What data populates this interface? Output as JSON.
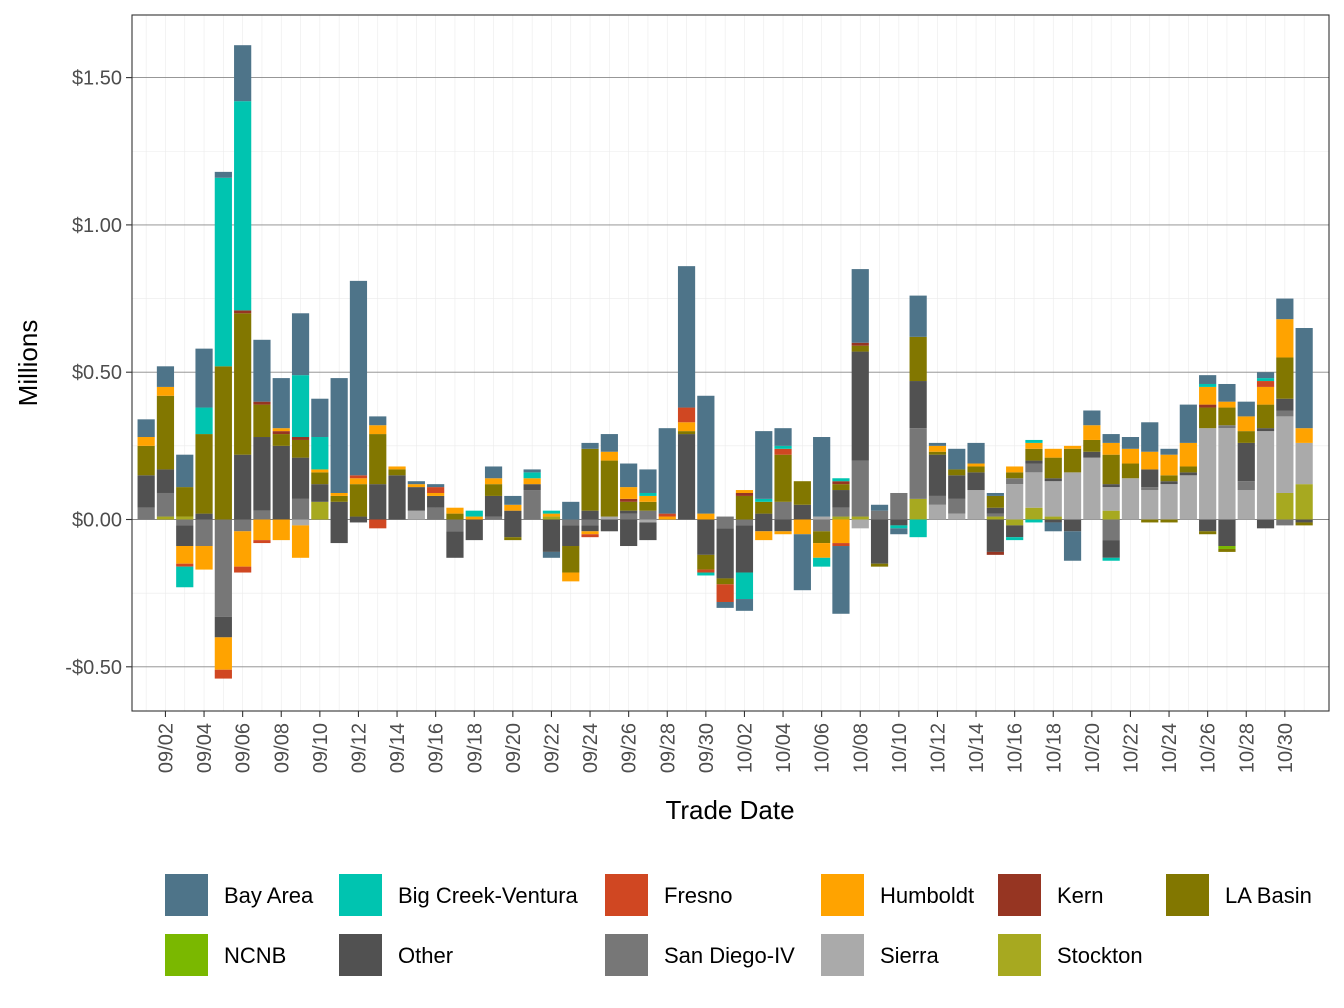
{
  "chart_data": {
    "type": "bar",
    "stacked": true,
    "title": "",
    "xlabel": "Trade Date",
    "ylabel": "Millions",
    "ylim": [
      -0.65,
      1.65
    ],
    "y_ticks": [
      {
        "value": -0.5,
        "label": "-$0.50"
      },
      {
        "value": 0.0,
        "label": "$0.00"
      },
      {
        "value": 0.5,
        "label": "$0.50"
      },
      {
        "value": 1.0,
        "label": "$1.00"
      },
      {
        "value": 1.5,
        "label": "$1.50"
      }
    ],
    "x_tick_labels": [
      "09/02",
      "09/04",
      "09/06",
      "09/08",
      "09/10",
      "09/12",
      "09/14",
      "09/16",
      "09/18",
      "09/20",
      "09/22",
      "09/24",
      "09/26",
      "09/28",
      "09/30",
      "10/02",
      "10/04",
      "10/06",
      "10/08",
      "10/10",
      "10/12",
      "10/14",
      "10/16",
      "10/18",
      "10/20",
      "10/22",
      "10/24",
      "10/26",
      "10/28",
      "10/30"
    ],
    "legend_position": "bottom",
    "series_order": [
      "Bay Area",
      "Big Creek-Ventura",
      "Fresno",
      "Humboldt",
      "Kern",
      "LA Basin",
      "NCNB",
      "Other",
      "San Diego-IV",
      "Sierra",
      "Stockton"
    ],
    "legend": [
      {
        "name": "Bay Area",
        "color": "#4e7489"
      },
      {
        "name": "Big Creek-Ventura",
        "color": "#00c4b0"
      },
      {
        "name": "Fresno",
        "color": "#d04722"
      },
      {
        "name": "Humboldt",
        "color": "#ffa300"
      },
      {
        "name": "Kern",
        "color": "#963522"
      },
      {
        "name": "LA Basin",
        "color": "#827700"
      },
      {
        "name": "NCNB",
        "color": "#7ab800"
      },
      {
        "name": "Other",
        "color": "#515151"
      },
      {
        "name": "San Diego-IV",
        "color": "#777777"
      },
      {
        "name": "Sierra",
        "color": "#aaaaaa"
      },
      {
        "name": "Stockton",
        "color": "#a7a920"
      }
    ],
    "bars": [
      {
        "date": "09/01",
        "pos": {
          "Bay Area": 0.06,
          "Humboldt": 0.03,
          "LA Basin": 0.1,
          "Other": 0.11,
          "San Diego-IV": 0.04
        },
        "neg": {}
      },
      {
        "date": "09/02",
        "pos": {
          "Bay Area": 0.07,
          "Humboldt": 0.03,
          "LA Basin": 0.25,
          "Other": 0.08,
          "San Diego-IV": 0.08,
          "Stockton": 0.01
        },
        "neg": {}
      },
      {
        "date": "09/03",
        "pos": {
          "Bay Area": 0.11,
          "LA Basin": 0.1,
          "Stockton": 0.01
        },
        "neg": {
          "San Diego-IV": 0.02,
          "Other": 0.07,
          "Humboldt": 0.06,
          "Fresno": 0.01,
          "Big Creek-Ventura": 0.07
        }
      },
      {
        "date": "09/04",
        "pos": {
          "Bay Area": 0.2,
          "Big Creek-Ventura": 0.09,
          "LA Basin": 0.27,
          "Other": 0.02
        },
        "neg": {
          "San Diego-IV": 0.09,
          "Humboldt": 0.08
        }
      },
      {
        "date": "09/05",
        "pos": {
          "Bay Area": 0.02,
          "Big Creek-Ventura": 0.64,
          "LA Basin": 0.52
        },
        "neg": {
          "San Diego-IV": 0.33,
          "Other": 0.07,
          "Humboldt": 0.11,
          "Fresno": 0.03
        }
      },
      {
        "date": "09/06",
        "pos": {
          "Bay Area": 0.19,
          "Big Creek-Ventura": 0.71,
          "LA Basin": 0.48,
          "Kern": 0.01,
          "Other": 0.22
        },
        "neg": {
          "San Diego-IV": 0.04,
          "Humboldt": 0.12,
          "Fresno": 0.02
        }
      },
      {
        "date": "09/07",
        "pos": {
          "Bay Area": 0.21,
          "Kern": 0.01,
          "LA Basin": 0.11,
          "Other": 0.25,
          "San Diego-IV": 0.03
        },
        "neg": {
          "Humboldt": 0.07,
          "Fresno": 0.01
        }
      },
      {
        "date": "09/08",
        "pos": {
          "Bay Area": 0.17,
          "Humboldt": 0.01,
          "Kern": 0.01,
          "LA Basin": 0.04,
          "Other": 0.25
        },
        "neg": {
          "Humboldt": 0.07
        }
      },
      {
        "date": "09/09",
        "pos": {
          "Bay Area": 0.21,
          "Big Creek-Ventura": 0.21,
          "Kern": 0.01,
          "LA Basin": 0.06,
          "Other": 0.14,
          "San Diego-IV": 0.07
        },
        "neg": {
          "Sierra": 0.02,
          "Humboldt": 0.11
        }
      },
      {
        "date": "09/10",
        "pos": {
          "Bay Area": 0.13,
          "Big Creek-Ventura": 0.11,
          "Humboldt": 0.01,
          "LA Basin": 0.04,
          "Other": 0.06,
          "Stockton": 0.06
        },
        "neg": {}
      },
      {
        "date": "09/11",
        "pos": {
          "Bay Area": 0.39,
          "Humboldt": 0.01,
          "LA Basin": 0.02,
          "Other": 0.06
        },
        "neg": {
          "Other": 0.08
        }
      },
      {
        "date": "09/12",
        "pos": {
          "Bay Area": 0.66,
          "Humboldt": 0.02,
          "LA Basin": 0.11,
          "Other": 0.01,
          "Fresno": 0.01
        },
        "neg": {
          "Other": 0.01
        }
      },
      {
        "date": "09/13",
        "pos": {
          "Bay Area": 0.03,
          "Humboldt": 0.03,
          "LA Basin": 0.17,
          "Other": 0.12
        },
        "neg": {
          "Fresno": 0.03
        }
      },
      {
        "date": "09/14",
        "pos": {
          "Humboldt": 0.01,
          "LA Basin": 0.02,
          "Other": 0.15
        },
        "neg": {}
      },
      {
        "date": "09/15",
        "pos": {
          "Bay Area": 0.01,
          "Humboldt": 0.01,
          "Other": 0.08,
          "Sierra": 0.03
        },
        "neg": {}
      },
      {
        "date": "09/16",
        "pos": {
          "Bay Area": 0.01,
          "Fresno": 0.02,
          "Humboldt": 0.01,
          "Other": 0.04,
          "San Diego-IV": 0.04
        },
        "neg": {}
      },
      {
        "date": "09/17",
        "pos": {
          "Humboldt": 0.02,
          "LA Basin": 0.02
        },
        "neg": {
          "San Diego-IV": 0.04,
          "Other": 0.09
        }
      },
      {
        "date": "09/18",
        "pos": {
          "Big Creek-Ventura": 0.02,
          "Humboldt": 0.01
        },
        "neg": {
          "Other": 0.07
        }
      },
      {
        "date": "09/19",
        "pos": {
          "Bay Area": 0.04,
          "Humboldt": 0.02,
          "LA Basin": 0.04,
          "Other": 0.07,
          "San Diego-IV": 0.01
        },
        "neg": {}
      },
      {
        "date": "09/20",
        "pos": {
          "Bay Area": 0.03,
          "Humboldt": 0.02,
          "Other": 0.03
        },
        "neg": {
          "Other": 0.06,
          "LA Basin": 0.01
        }
      },
      {
        "date": "09/21",
        "pos": {
          "Bay Area": 0.01,
          "Big Creek-Ventura": 0.02,
          "Humboldt": 0.02,
          "Other": 0.02,
          "San Diego-IV": 0.1
        },
        "neg": {}
      },
      {
        "date": "09/22",
        "pos": {
          "Big Creek-Ventura": 0.01,
          "Humboldt": 0.01,
          "Stockton": 0.01
        },
        "neg": {
          "Other": 0.11,
          "Bay Area": 0.02
        }
      },
      {
        "date": "09/23",
        "pos": {
          "Bay Area": 0.06
        },
        "neg": {
          "San Diego-IV": 0.02,
          "Other": 0.07,
          "LA Basin": 0.09,
          "Humboldt": 0.03
        }
      },
      {
        "date": "09/24",
        "pos": {
          "Bay Area": 0.02,
          "LA Basin": 0.21,
          "Other": 0.03
        },
        "neg": {
          "San Diego-IV": 0.02,
          "Other": 0.02,
          "Humboldt": 0.01,
          "Fresno": 0.01
        }
      },
      {
        "date": "09/25",
        "pos": {
          "Bay Area": 0.06,
          "Humboldt": 0.03,
          "LA Basin": 0.19,
          "Sierra": 0.01
        },
        "neg": {
          "Other": 0.04
        }
      },
      {
        "date": "09/26",
        "pos": {
          "Bay Area": 0.08,
          "Humboldt": 0.04,
          "Kern": 0.01,
          "LA Basin": 0.03,
          "Other": 0.01,
          "San Diego-IV": 0.02
        },
        "neg": {
          "Other": 0.09
        }
      },
      {
        "date": "09/27",
        "pos": {
          "Bay Area": 0.08,
          "Big Creek-Ventura": 0.01,
          "Humboldt": 0.02,
          "LA Basin": 0.03,
          "San Diego-IV": 0.03
        },
        "neg": {
          "Sierra": 0.01,
          "Other": 0.06
        }
      },
      {
        "date": "09/28",
        "pos": {
          "Bay Area": 0.29,
          "Humboldt": 0.01,
          "Fresno": 0.01
        },
        "neg": {}
      },
      {
        "date": "09/29",
        "pos": {
          "Bay Area": 0.48,
          "Fresno": 0.05,
          "Humboldt": 0.03,
          "LA Basin": 0.01,
          "Other": 0.29
        },
        "neg": {}
      },
      {
        "date": "09/30",
        "pos": {
          "Bay Area": 0.4,
          "Humboldt": 0.02
        },
        "neg": {
          "Other": 0.12,
          "LA Basin": 0.05,
          "Fresno": 0.01,
          "Big Creek-Ventura": 0.01
        }
      },
      {
        "date": "10/01",
        "pos": {
          "San Diego-IV": 0.01
        },
        "neg": {
          "San Diego-IV": 0.03,
          "Other": 0.17,
          "LA Basin": 0.02,
          "Fresno": 0.06,
          "Bay Area": 0.02
        }
      },
      {
        "date": "10/02",
        "pos": {
          "Humboldt": 0.01,
          "Kern": 0.01,
          "LA Basin": 0.08
        },
        "neg": {
          "San Diego-IV": 0.02,
          "Other": 0.16,
          "Big Creek-Ventura": 0.09,
          "Bay Area": 0.04
        }
      },
      {
        "date": "10/03",
        "pos": {
          "Bay Area": 0.23,
          "Big Creek-Ventura": 0.01,
          "LA Basin": 0.04,
          "Other": 0.02
        },
        "neg": {
          "Other": 0.04,
          "Humboldt": 0.03
        }
      },
      {
        "date": "10/04",
        "pos": {
          "Bay Area": 0.06,
          "Big Creek-Ventura": 0.01,
          "Fresno": 0.02,
          "LA Basin": 0.16,
          "San Diego-IV": 0.06
        },
        "neg": {
          "Other": 0.04,
          "Humboldt": 0.01
        }
      },
      {
        "date": "10/05",
        "pos": {
          "LA Basin": 0.08,
          "Other": 0.05
        },
        "neg": {
          "Humboldt": 0.05,
          "Bay Area": 0.19
        }
      },
      {
        "date": "10/06",
        "pos": {
          "Bay Area": 0.27,
          "Sierra": 0.01
        },
        "neg": {
          "San Diego-IV": 0.04,
          "LA Basin": 0.04,
          "Humboldt": 0.05,
          "Big Creek-Ventura": 0.03
        }
      },
      {
        "date": "10/07",
        "pos": {
          "Big Creek-Ventura": 0.01,
          "Kern": 0.01,
          "LA Basin": 0.02,
          "Other": 0.06,
          "San Diego-IV": 0.03,
          "Stockton": 0.01
        },
        "neg": {
          "Humboldt": 0.08,
          "Fresno": 0.01,
          "Bay Area": 0.23
        }
      },
      {
        "date": "10/08",
        "pos": {
          "Bay Area": 0.25,
          "Kern": 0.01,
          "LA Basin": 0.02,
          "Other": 0.37,
          "San Diego-IV": 0.19,
          "Stockton": 0.01
        },
        "neg": {
          "Sierra": 0.03
        }
      },
      {
        "date": "10/09",
        "pos": {
          "Bay Area": 0.02,
          "San Diego-IV": 0.03
        },
        "neg": {
          "Other": 0.15,
          "LA Basin": 0.01
        }
      },
      {
        "date": "10/10",
        "pos": {
          "San Diego-IV": 0.09
        },
        "neg": {
          "Bay Area": 0.02,
          "Big Creek-Ventura": 0.01,
          "Other": 0.02
        }
      },
      {
        "date": "10/11",
        "pos": {
          "Bay Area": 0.14,
          "LA Basin": 0.15,
          "Other": 0.16,
          "San Diego-IV": 0.24,
          "Stockton": 0.07
        },
        "neg": {
          "Big Creek-Ventura": 0.06
        }
      },
      {
        "date": "10/12",
        "pos": {
          "Bay Area": 0.01,
          "Humboldt": 0.02,
          "LA Basin": 0.01,
          "Other": 0.14,
          "San Diego-IV": 0.03,
          "Sierra": 0.05
        },
        "neg": {}
      },
      {
        "date": "10/13",
        "pos": {
          "Bay Area": 0.07,
          "LA Basin": 0.02,
          "Other": 0.08,
          "San Diego-IV": 0.05,
          "Sierra": 0.02
        },
        "neg": {}
      },
      {
        "date": "10/14",
        "pos": {
          "Bay Area": 0.07,
          "Humboldt": 0.01,
          "LA Basin": 0.02,
          "Other": 0.06,
          "Sierra": 0.1
        },
        "neg": {}
      },
      {
        "date": "10/15",
        "pos": {
          "Bay Area": 0.01,
          "LA Basin": 0.04,
          "Other": 0.02,
          "San Diego-IV": 0.01,
          "Stockton": 0.01
        },
        "neg": {
          "Other": 0.11,
          "Kern": 0.01
        }
      },
      {
        "date": "10/16",
        "pos": {
          "Humboldt": 0.02,
          "LA Basin": 0.02,
          "San Diego-IV": 0.02,
          "Sierra": 0.12
        },
        "neg": {
          "Stockton": 0.02,
          "Other": 0.04,
          "Big Creek-Ventura": 0.01
        }
      },
      {
        "date": "10/17",
        "pos": {
          "Big Creek-Ventura": 0.01,
          "Humboldt": 0.02,
          "LA Basin": 0.04,
          "Other": 0.01,
          "San Diego-IV": 0.03,
          "Sierra": 0.12,
          "Stockton": 0.04
        },
        "neg": {
          "Big Creek-Ventura": 0.01
        }
      },
      {
        "date": "10/18",
        "pos": {
          "Humboldt": 0.03,
          "LA Basin": 0.07,
          "Other": 0.01,
          "Sierra": 0.12,
          "Stockton": 0.01
        },
        "neg": {
          "Other": 0.01,
          "Bay Area": 0.03
        }
      },
      {
        "date": "10/19",
        "pos": {
          "Humboldt": 0.01,
          "LA Basin": 0.08,
          "Sierra": 0.16
        },
        "neg": {
          "Other": 0.04,
          "Bay Area": 0.1
        }
      },
      {
        "date": "10/20",
        "pos": {
          "Bay Area": 0.05,
          "Humboldt": 0.05,
          "LA Basin": 0.04,
          "Other": 0.02,
          "Sierra": 0.21
        },
        "neg": {}
      },
      {
        "date": "10/21",
        "pos": {
          "Bay Area": 0.03,
          "Humboldt": 0.04,
          "LA Basin": 0.1,
          "Other": 0.01,
          "Sierra": 0.08,
          "Stockton": 0.03
        },
        "neg": {
          "San Diego-IV": 0.07,
          "Other": 0.06,
          "Big Creek-Ventura": 0.01
        }
      },
      {
        "date": "10/22",
        "pos": {
          "Bay Area": 0.04,
          "Humboldt": 0.05,
          "LA Basin": 0.05,
          "Sierra": 0.14
        },
        "neg": {}
      },
      {
        "date": "10/23",
        "pos": {
          "Bay Area": 0.1,
          "Humboldt": 0.06,
          "Other": 0.06,
          "San Diego-IV": 0.01,
          "Sierra": 0.1
        },
        "neg": {
          "LA Basin": 0.01
        }
      },
      {
        "date": "10/24",
        "pos": {
          "Bay Area": 0.02,
          "Humboldt": 0.07,
          "LA Basin": 0.02,
          "Other": 0.01,
          "Sierra": 0.12
        },
        "neg": {
          "LA Basin": 0.01
        }
      },
      {
        "date": "10/25",
        "pos": {
          "Bay Area": 0.13,
          "Humboldt": 0.08,
          "LA Basin": 0.02,
          "Other": 0.01,
          "Sierra": 0.15
        },
        "neg": {}
      },
      {
        "date": "10/26",
        "pos": {
          "Bay Area": 0.03,
          "Big Creek-Ventura": 0.01,
          "Humboldt": 0.06,
          "Kern": 0.01,
          "LA Basin": 0.07,
          "Sierra": 0.31
        },
        "neg": {
          "Other": 0.04,
          "LA Basin": 0.01
        }
      },
      {
        "date": "10/27",
        "pos": {
          "Bay Area": 0.06,
          "Humboldt": 0.02,
          "LA Basin": 0.06,
          "San Diego-IV": 0.01,
          "Sierra": 0.31
        },
        "neg": {
          "Other": 0.09,
          "LA Basin": 0.01,
          "NCNB": 0.01
        }
      },
      {
        "date": "10/28",
        "pos": {
          "Bay Area": 0.05,
          "Humboldt": 0.05,
          "LA Basin": 0.04,
          "Other": 0.13,
          "San Diego-IV": 0.03,
          "Sierra": 0.1
        },
        "neg": {}
      },
      {
        "date": "10/29",
        "pos": {
          "Bay Area": 0.02,
          "Big Creek-Ventura": 0.01,
          "Fresno": 0.02,
          "Humboldt": 0.06,
          "LA Basin": 0.08,
          "Other": 0.01,
          "Sierra": 0.3
        },
        "neg": {
          "Other": 0.03
        }
      },
      {
        "date": "10/30",
        "pos": {
          "Bay Area": 0.07,
          "Humboldt": 0.13,
          "LA Basin": 0.14,
          "Other": 0.04,
          "San Diego-IV": 0.02,
          "Sierra": 0.26,
          "Stockton": 0.09
        },
        "neg": {
          "San Diego-IV": 0.02
        }
      },
      {
        "date": "10/31",
        "pos": {
          "Bay Area": 0.34,
          "Humboldt": 0.05,
          "Sierra": 0.14,
          "Stockton": 0.12
        },
        "neg": {
          "Other": 0.01,
          "LA Basin": 0.01
        }
      }
    ]
  }
}
